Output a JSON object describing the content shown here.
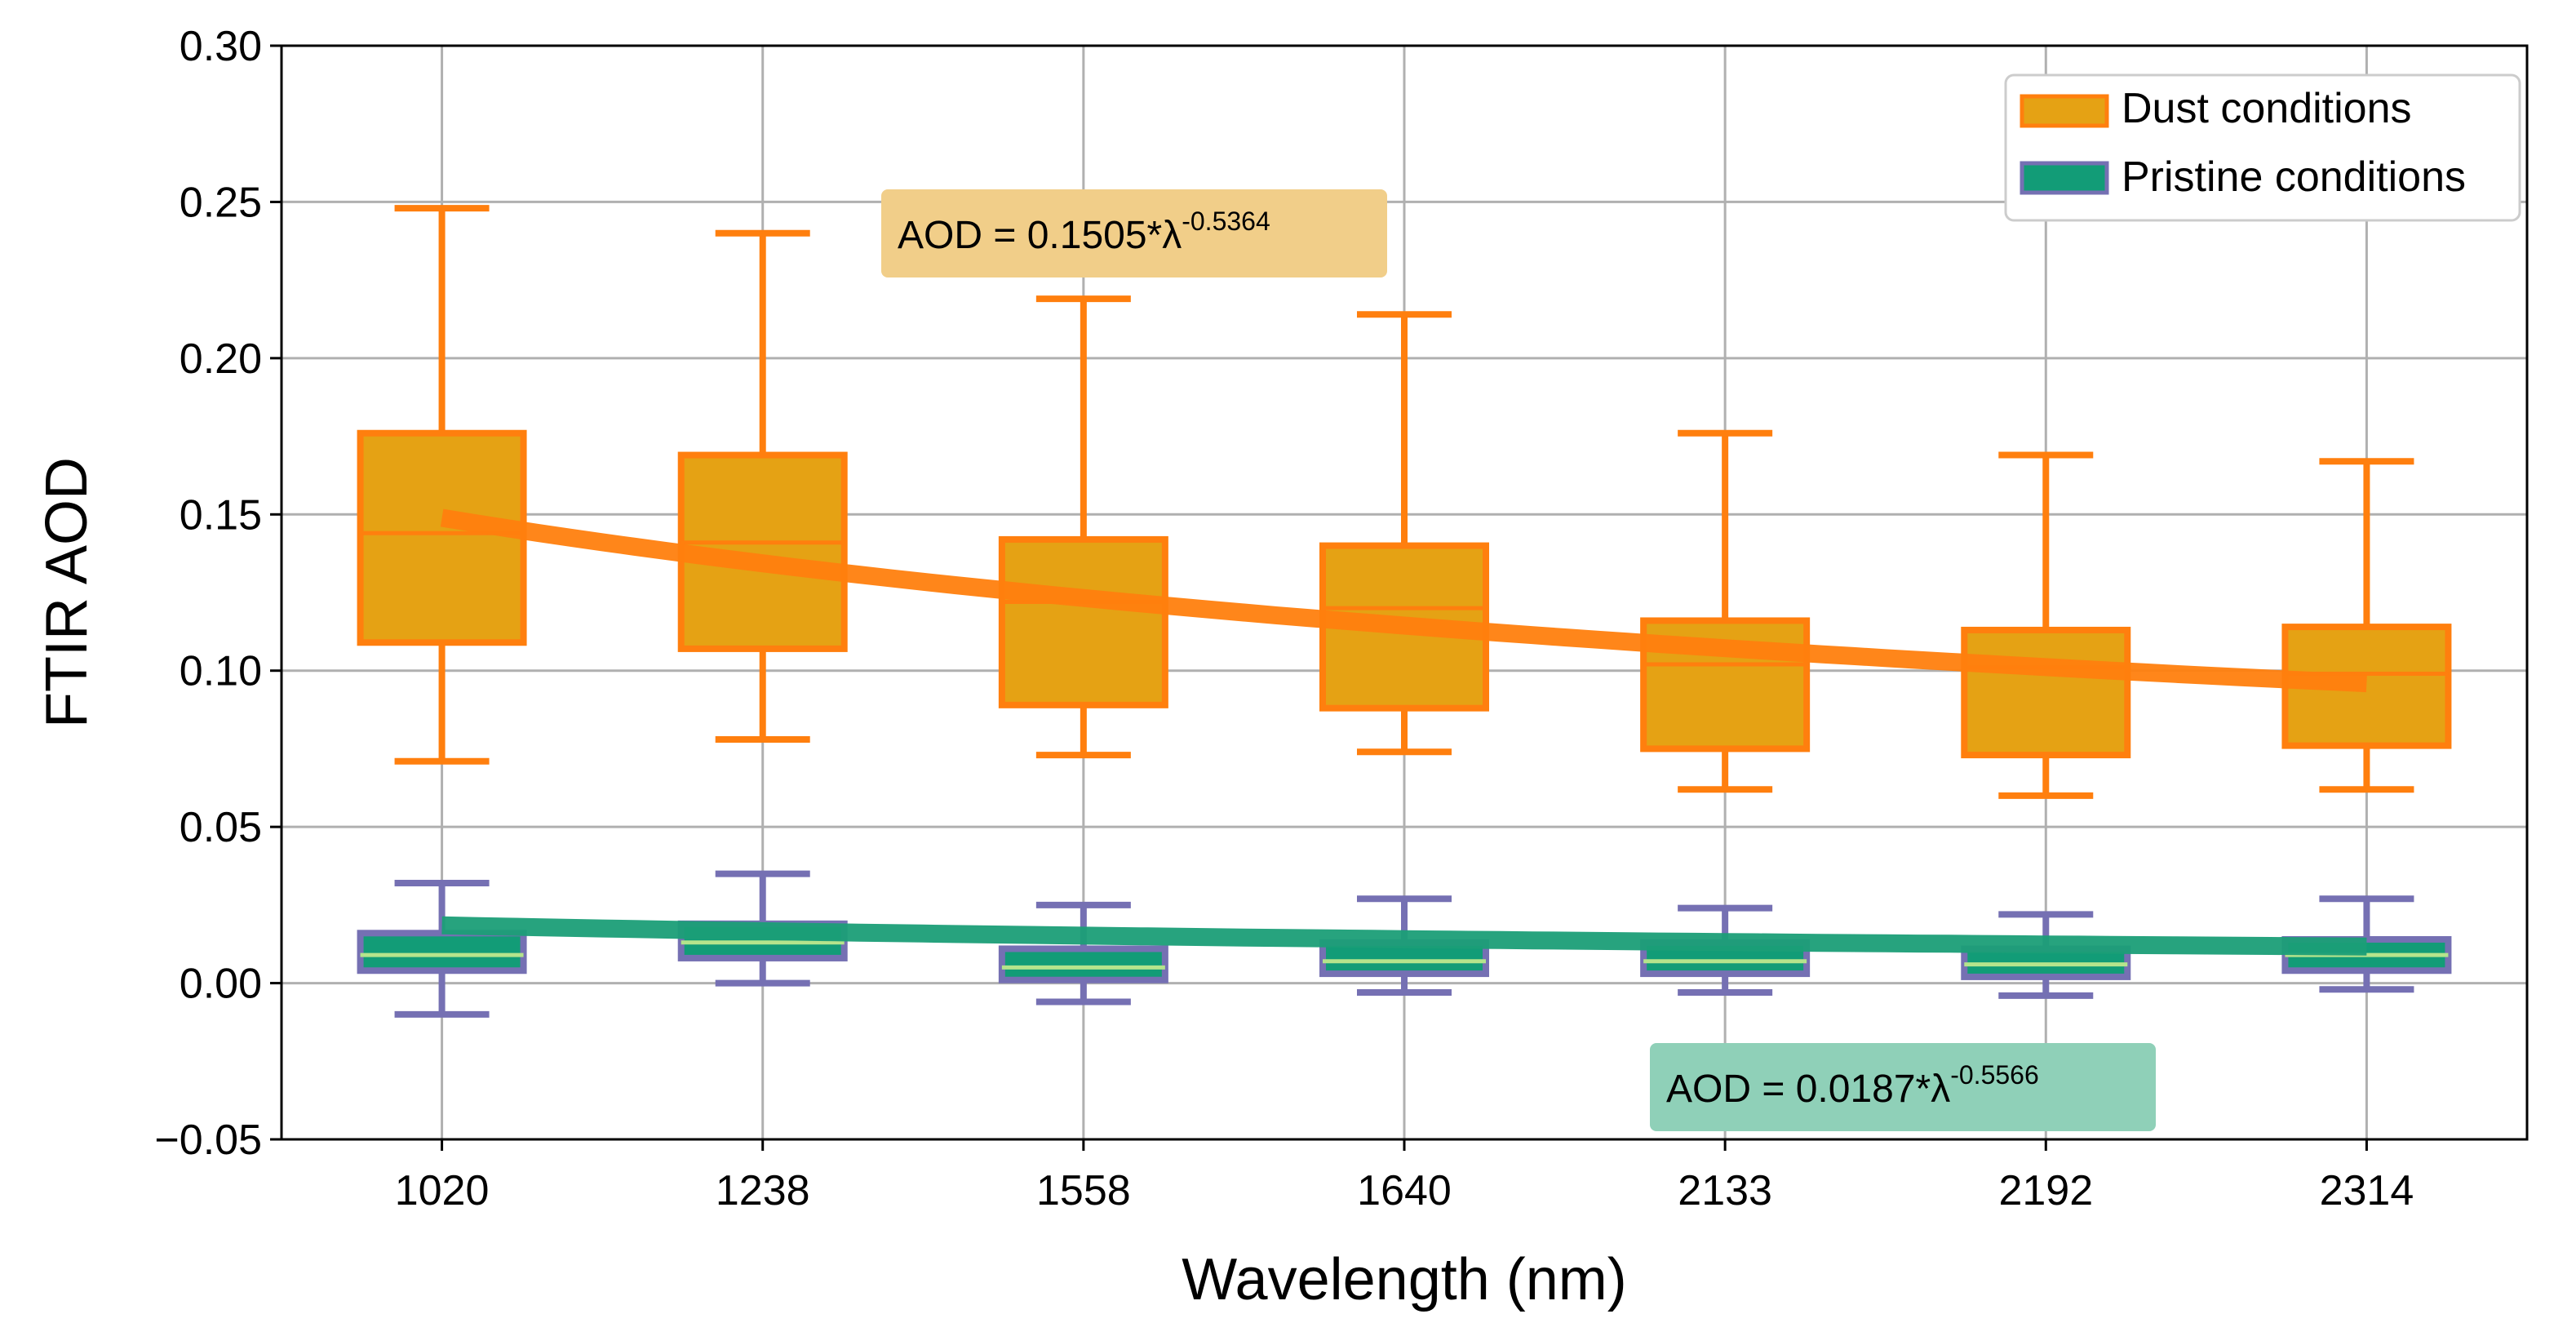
{
  "chart_data": {
    "type": "box",
    "title": "",
    "xlabel": "Wavelength (nm)",
    "ylabel": "FTIR AOD",
    "categories": [
      "1020",
      "1238",
      "1558",
      "1640",
      "2133",
      "2192",
      "2314"
    ],
    "ylim": [
      -0.05,
      0.3
    ],
    "yticks": [
      -0.05,
      0.0,
      0.05,
      0.1,
      0.15,
      0.2,
      0.25,
      0.3
    ],
    "ytick_labels": [
      "−0.05",
      "0.00",
      "0.05",
      "0.10",
      "0.15",
      "0.20",
      "0.25",
      "0.30"
    ],
    "grid": true,
    "legend_position": "top-right",
    "series": [
      {
        "name": "Dust conditions",
        "box_color": "#E5A214",
        "edge_color": "#FF7F0E",
        "median_color": "#FF7F0E",
        "boxes": [
          {
            "whislo": 0.071,
            "q1": 0.109,
            "med": 0.144,
            "q3": 0.176,
            "whishi": 0.248
          },
          {
            "whislo": 0.078,
            "q1": 0.107,
            "med": 0.141,
            "q3": 0.169,
            "whishi": 0.24
          },
          {
            "whislo": 0.073,
            "q1": 0.089,
            "med": 0.122,
            "q3": 0.142,
            "whishi": 0.219
          },
          {
            "whislo": 0.074,
            "q1": 0.088,
            "med": 0.12,
            "q3": 0.14,
            "whishi": 0.214
          },
          {
            "whislo": 0.062,
            "q1": 0.075,
            "med": 0.102,
            "q3": 0.116,
            "whishi": 0.176
          },
          {
            "whislo": 0.06,
            "q1": 0.073,
            "med": 0.101,
            "q3": 0.113,
            "whishi": 0.169
          },
          {
            "whislo": 0.062,
            "q1": 0.076,
            "med": 0.099,
            "q3": 0.114,
            "whishi": 0.167
          }
        ],
        "fit": {
          "a": 0.1505,
          "b": -0.5364,
          "color": "#FF7F0E",
          "label_prefix": "AOD = 0.1505*λ",
          "label_exp": "-0.5364",
          "box_color": "#F1CE89"
        }
      },
      {
        "name": "Pristine conditions",
        "box_color": "#129C77",
        "edge_color": "#7570B3",
        "median_color": "#B5E48C",
        "boxes": [
          {
            "whislo": -0.01,
            "q1": 0.004,
            "med": 0.009,
            "q3": 0.016,
            "whishi": 0.032
          },
          {
            "whislo": 0.0,
            "q1": 0.008,
            "med": 0.013,
            "q3": 0.019,
            "whishi": 0.035
          },
          {
            "whislo": -0.006,
            "q1": 0.001,
            "med": 0.005,
            "q3": 0.011,
            "whishi": 0.025
          },
          {
            "whislo": -0.003,
            "q1": 0.003,
            "med": 0.007,
            "q3": 0.013,
            "whishi": 0.027
          },
          {
            "whislo": -0.003,
            "q1": 0.003,
            "med": 0.007,
            "q3": 0.013,
            "whishi": 0.024
          },
          {
            "whislo": -0.004,
            "q1": 0.002,
            "med": 0.006,
            "q3": 0.011,
            "whishi": 0.022
          },
          {
            "whislo": -0.002,
            "q1": 0.004,
            "med": 0.009,
            "q3": 0.014,
            "whishi": 0.027
          }
        ],
        "fit": {
          "a": 0.0187,
          "b": -0.5566,
          "color": "#1B9E77",
          "label_prefix": "AOD = 0.0187*λ",
          "label_exp": "-0.5566",
          "box_color": "#8FD0B8"
        }
      }
    ]
  }
}
